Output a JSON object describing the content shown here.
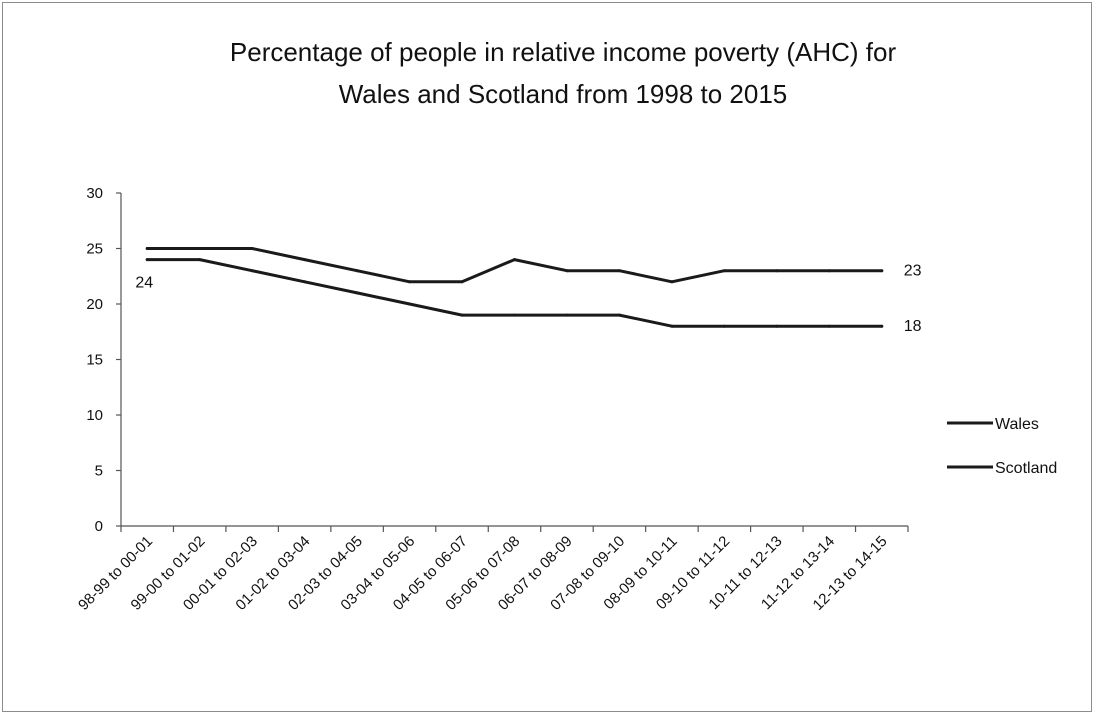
{
  "chart_data": {
    "type": "line",
    "title": [
      "Percentage of people in relative income poverty (AHC) for",
      "Wales and Scotland from 1998 to 2015"
    ],
    "xlabel": "",
    "ylabel": "",
    "categories": [
      "98-99 to 00-01",
      "99-00 to 01-02",
      "00-01 to 02-03",
      "01-02 to 03-04",
      "02-03 to 04-05",
      "03-04 to 05-06",
      "04-05 to 06-07",
      "05-06 to 07-08",
      "06-07 to 08-09",
      "07-08 to 09-10",
      "08-09 to 10-11",
      "09-10 to 11-12",
      "10-11 to 12-13",
      "11-12 to 13-14",
      "12-13 to 14-15"
    ],
    "ylim": [
      0,
      30
    ],
    "yticks": [
      "0",
      "5",
      "10",
      "15",
      "20",
      "25",
      "30"
    ],
    "grid": false,
    "legend_position": "right",
    "series": [
      {
        "name": "Wales",
        "color": "#1a1a1a",
        "values": [
          25,
          25,
          25,
          24,
          23,
          22,
          22,
          24,
          23,
          23,
          22,
          23,
          23,
          23,
          23
        ],
        "labels": [
          {
            "index": 14,
            "text": "23"
          }
        ]
      },
      {
        "name": "Scotland",
        "color": "#1a1a1a",
        "values": [
          24,
          24,
          23,
          22,
          21,
          20,
          19,
          19,
          19,
          19,
          18,
          18,
          18,
          18,
          18
        ],
        "labels": [
          {
            "index": 0,
            "text": "24"
          },
          {
            "index": 14,
            "text": "18"
          }
        ]
      }
    ]
  }
}
